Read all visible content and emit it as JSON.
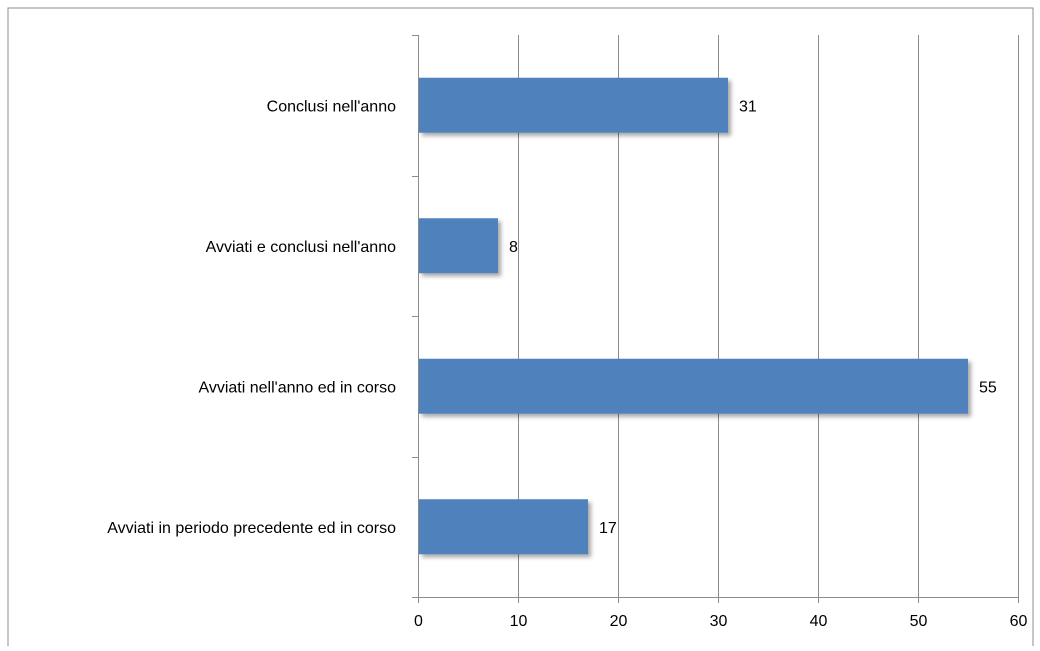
{
  "chart_data": {
    "type": "bar",
    "orientation": "horizontal",
    "categories": [
      "Conclusi nell'anno",
      "Avviati e conclusi nell'anno",
      "Avviati nell'anno ed in corso",
      "Avviati in periodo precedente ed in corso"
    ],
    "values": [
      31,
      8,
      55,
      17
    ],
    "data_labels": [
      "31",
      "8",
      "55",
      "17"
    ],
    "xlim": [
      0,
      60
    ],
    "x_ticks": [
      0,
      10,
      20,
      30,
      40,
      50,
      60
    ],
    "x_tick_labels": [
      "0",
      "10",
      "20",
      "30",
      "40",
      "50",
      "60"
    ],
    "title": "",
    "xlabel": "",
    "ylabel": "",
    "grid": "vertical",
    "legend": "none",
    "bar_color": "#4f81bd",
    "grid_color": "#8c8c8c",
    "border_color": "#8c8c8c"
  }
}
